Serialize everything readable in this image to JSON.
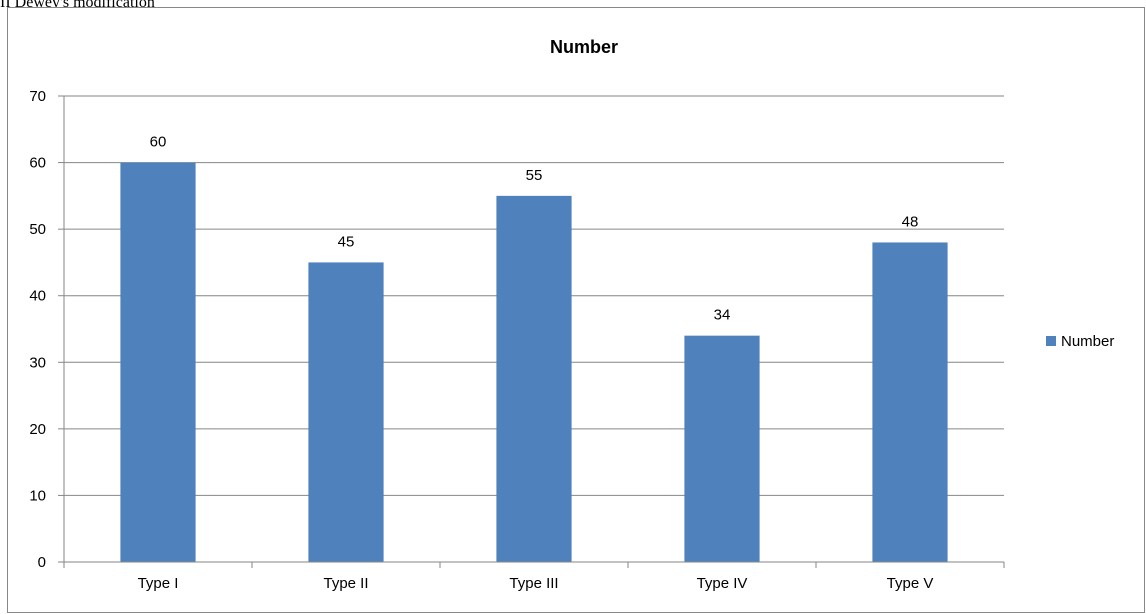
{
  "caption": "II Dewey's modification",
  "chart_data": {
    "type": "bar",
    "title": "Number",
    "categories": [
      "Type I",
      "Type II",
      "Type III",
      "Type IV",
      "Type V"
    ],
    "series": [
      {
        "name": "Number",
        "values": [
          60,
          45,
          55,
          34,
          48
        ],
        "color": "#4F81BD"
      }
    ],
    "ylim": [
      0,
      70
    ],
    "yticks": [
      0,
      10,
      20,
      30,
      40,
      50,
      60,
      70
    ],
    "grid": true,
    "data_labels": true,
    "legend_position": "right",
    "gridline_color": "#868686",
    "axis_color": "#868686"
  }
}
